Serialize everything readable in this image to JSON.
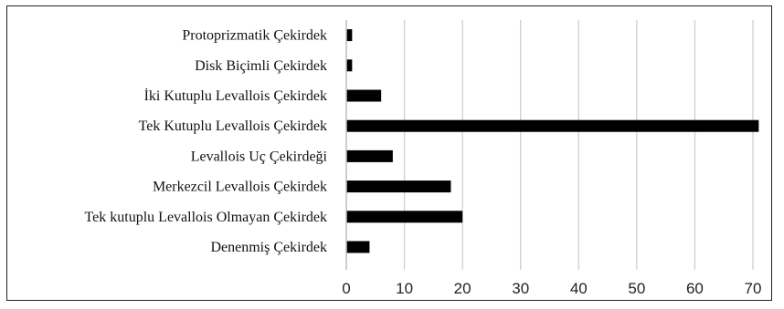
{
  "chart_data": {
    "type": "bar",
    "orientation": "horizontal",
    "categories": [
      "Protoprizmatik Çekirdek",
      "Disk Biçimli Çekirdek",
      "İki Kutuplu Levallois Çekirdek",
      "Tek Kutuplu Levallois Çekirdek",
      "Levallois Uç Çekirdeği",
      "Merkezcil Levallois Çekirdek",
      "Tek kutuplu Levallois Olmayan Çekirdek",
      "Denenmiş Çekirdek"
    ],
    "values": [
      1,
      1,
      6,
      71,
      8,
      18,
      20,
      4
    ],
    "xlim": [
      0,
      70
    ],
    "xticks": [
      "0",
      "10",
      "20",
      "30",
      "40",
      "50",
      "60",
      "70"
    ],
    "grid": "vertical",
    "bar_color": "#000000",
    "grid_color": "#d0d0d0"
  }
}
